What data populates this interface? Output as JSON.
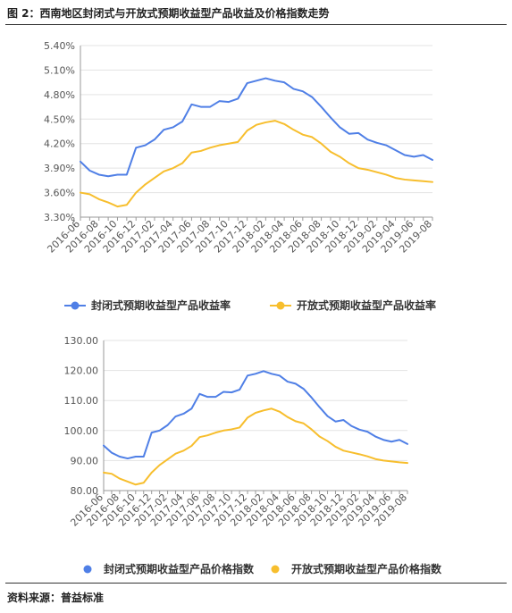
{
  "figure": {
    "title": "图 2：西南地区封闭式与开放式预期收益型产品收益及价格指数走势",
    "source": "资料来源：普益标准"
  },
  "colors": {
    "blue": "#4f7fe6",
    "yellow": "#f7be2d",
    "axis": "#999999",
    "grid": "#e3e3e3"
  },
  "chart_data": [
    {
      "type": "line",
      "title": "",
      "ylabel": "",
      "xlabel": "",
      "ylim": [
        3.3,
        5.4
      ],
      "yticks": [
        "3.30%",
        "3.60%",
        "3.90%",
        "4.20%",
        "4.50%",
        "4.80%",
        "5.10%",
        "5.40%"
      ],
      "ytick_values": [
        3.3,
        3.6,
        3.9,
        4.2,
        4.5,
        4.8,
        5.1,
        5.4
      ],
      "x": [
        "2016-06",
        "2016-07",
        "2016-08",
        "2016-09",
        "2016-10",
        "2016-11",
        "2016-12",
        "2017-01",
        "2017-02",
        "2017-03",
        "2017-04",
        "2017-05",
        "2017-06",
        "2017-07",
        "2017-08",
        "2017-09",
        "2017-10",
        "2017-11",
        "2017-12",
        "2018-01",
        "2018-02",
        "2018-03",
        "2018-04",
        "2018-05",
        "2018-06",
        "2018-07",
        "2018-08",
        "2018-09",
        "2018-10",
        "2018-11",
        "2018-12",
        "2019-01",
        "2019-02",
        "2019-03",
        "2019-04",
        "2019-05",
        "2019-06",
        "2019-07",
        "2019-08"
      ],
      "xtick_labels": [
        "2016-06",
        "2016-08",
        "2016-10",
        "2016-12",
        "2017-02",
        "2017-04",
        "2017-06",
        "2017-08",
        "2017-10",
        "2017-12",
        "2018-02",
        "2018-04",
        "2018-06",
        "2018-08",
        "2018-10",
        "2018-12",
        "2019-02",
        "2019-04",
        "2019-06",
        "2019-08"
      ],
      "series": [
        {
          "name": "封闭式预期收益型产品收益率",
          "color": "#4f7fe6",
          "values": [
            3.98,
            3.87,
            3.82,
            3.8,
            3.82,
            3.82,
            4.15,
            4.18,
            4.25,
            4.37,
            4.4,
            4.47,
            4.68,
            4.65,
            4.65,
            4.72,
            4.71,
            4.75,
            4.94,
            4.97,
            5.0,
            4.97,
            4.95,
            4.87,
            4.84,
            4.77,
            4.65,
            4.52,
            4.4,
            4.32,
            4.33,
            4.25,
            4.21,
            4.18,
            4.12,
            4.06,
            4.04,
            4.06,
            4.0
          ]
        },
        {
          "name": "开放式预期收益型产品收益率",
          "color": "#f7be2d",
          "values": [
            3.6,
            3.58,
            3.52,
            3.48,
            3.43,
            3.45,
            3.6,
            3.7,
            3.78,
            3.86,
            3.9,
            3.96,
            4.09,
            4.11,
            4.15,
            4.18,
            4.2,
            4.22,
            4.36,
            4.43,
            4.46,
            4.48,
            4.44,
            4.37,
            4.31,
            4.28,
            4.2,
            4.1,
            4.04,
            3.96,
            3.9,
            3.88,
            3.85,
            3.82,
            3.78,
            3.76,
            3.75,
            3.74,
            3.73
          ]
        }
      ]
    },
    {
      "type": "line",
      "title": "",
      "ylabel": "",
      "xlabel": "",
      "ylim": [
        80,
        130
      ],
      "yticks": [
        "80.00",
        "90.00",
        "100.00",
        "110.00",
        "120.00",
        "130.00"
      ],
      "ytick_values": [
        80,
        90,
        100,
        110,
        120,
        130
      ],
      "x": [
        "2016-06",
        "2016-07",
        "2016-08",
        "2016-09",
        "2016-10",
        "2016-11",
        "2016-12",
        "2017-01",
        "2017-02",
        "2017-03",
        "2017-04",
        "2017-05",
        "2017-06",
        "2017-07",
        "2017-08",
        "2017-09",
        "2017-10",
        "2017-11",
        "2017-12",
        "2018-01",
        "2018-02",
        "2018-03",
        "2018-04",
        "2018-05",
        "2018-06",
        "2018-07",
        "2018-08",
        "2018-09",
        "2018-10",
        "2018-11",
        "2018-12",
        "2019-01",
        "2019-02",
        "2019-03",
        "2019-04",
        "2019-05",
        "2019-06",
        "2019-07",
        "2019-08"
      ],
      "xtick_labels": [
        "2016-06",
        "2016-08",
        "2016-10",
        "2016-12",
        "2017-02",
        "2017-04",
        "2017-06",
        "2017-08",
        "2017-10",
        "2017-12",
        "2018-02",
        "2018-04",
        "2018-06",
        "2018-08",
        "2018-10",
        "2018-12",
        "2019-02",
        "2019-04",
        "2019-06",
        "2019-08"
      ],
      "series": [
        {
          "name": "封闭式预期收益型产品价格指数",
          "color": "#4f7fe6",
          "values": [
            95.0,
            92.6,
            91.3,
            90.7,
            91.3,
            91.3,
            99.3,
            100.0,
            101.8,
            104.7,
            105.6,
            107.3,
            112.2,
            111.2,
            111.2,
            112.9,
            112.7,
            113.6,
            118.3,
            118.9,
            119.8,
            118.9,
            118.3,
            116.3,
            115.6,
            113.9,
            111.0,
            107.8,
            104.8,
            103.0,
            103.5,
            101.5,
            100.3,
            99.6,
            98.0,
            96.9,
            96.3,
            96.9,
            95.5
          ]
        },
        {
          "name": "开放式预期收益型产品价格指数",
          "color": "#f7be2d",
          "values": [
            86.0,
            85.6,
            84.0,
            83.0,
            82.0,
            82.6,
            86.0,
            88.5,
            90.4,
            92.3,
            93.3,
            94.9,
            97.8,
            98.4,
            99.3,
            100.0,
            100.4,
            101.0,
            104.3,
            105.9,
            106.7,
            107.3,
            106.3,
            104.5,
            103.1,
            102.4,
            100.4,
            98.0,
            96.5,
            94.6,
            93.3,
            92.7,
            92.1,
            91.4,
            90.5,
            90.0,
            89.7,
            89.4,
            89.2
          ]
        }
      ]
    }
  ]
}
